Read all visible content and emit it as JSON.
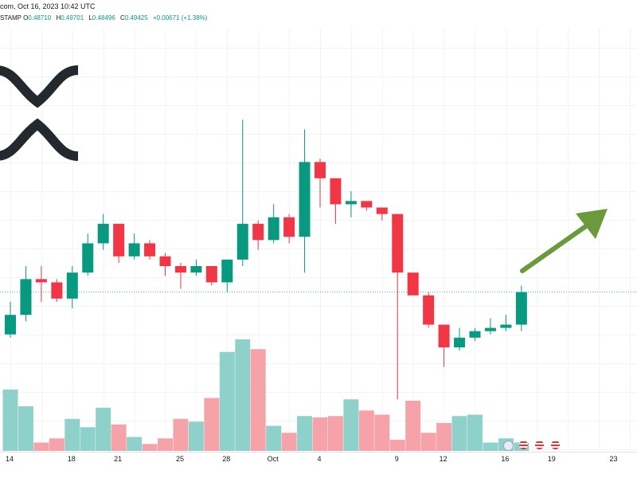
{
  "header": {
    "line1": "com, Oct 16, 2023 10:42 UTC",
    "line2_prefix": "STAMP",
    "ohlc": [
      {
        "key": "O",
        "value": "0.48710"
      },
      {
        "key": "H",
        "value": "0.49701"
      },
      {
        "key": "L",
        "value": "0.48496"
      },
      {
        "key": "C",
        "value": "0.49425"
      },
      {
        "key": "",
        "value": "+0.00671 (+1.38%)"
      }
    ]
  },
  "colors": {
    "up": "#089981",
    "down": "#F23645",
    "up_vol": "#8ED1CB",
    "down_vol": "#F5A3A8",
    "arrow": "#6A9A3A",
    "logo": "#23292F",
    "grid": "#F0F3FA",
    "last_price_line": "#089981"
  },
  "chart_data": {
    "type": "candlestick",
    "title": "",
    "xlabel": "",
    "ylabel": "",
    "x_tick_labels": [
      "14",
      "18",
      "21",
      "25",
      "28",
      "Oct",
      "4",
      "9",
      "12",
      "16",
      "19",
      "23"
    ],
    "ylim": [
      0.44,
      0.56
    ],
    "grid": true,
    "candles": [
      {
        "o": 0.467,
        "h": 0.477,
        "l": 0.466,
        "c": 0.473
      },
      {
        "o": 0.473,
        "h": 0.488,
        "l": 0.471,
        "c": 0.484
      },
      {
        "o": 0.484,
        "h": 0.488,
        "l": 0.477,
        "c": 0.483
      },
      {
        "o": 0.483,
        "h": 0.484,
        "l": 0.477,
        "c": 0.478
      },
      {
        "o": 0.478,
        "h": 0.488,
        "l": 0.475,
        "c": 0.486
      },
      {
        "o": 0.486,
        "h": 0.498,
        "l": 0.485,
        "c": 0.495
      },
      {
        "o": 0.495,
        "h": 0.504,
        "l": 0.493,
        "c": 0.501
      },
      {
        "o": 0.501,
        "h": 0.501,
        "l": 0.489,
        "c": 0.491
      },
      {
        "o": 0.491,
        "h": 0.498,
        "l": 0.49,
        "c": 0.495
      },
      {
        "o": 0.495,
        "h": 0.496,
        "l": 0.49,
        "c": 0.491
      },
      {
        "o": 0.491,
        "h": 0.492,
        "l": 0.485,
        "c": 0.488
      },
      {
        "o": 0.488,
        "h": 0.489,
        "l": 0.481,
        "c": 0.486
      },
      {
        "o": 0.486,
        "h": 0.49,
        "l": 0.485,
        "c": 0.488
      },
      {
        "o": 0.488,
        "h": 0.488,
        "l": 0.482,
        "c": 0.483
      },
      {
        "o": 0.483,
        "h": 0.49,
        "l": 0.48,
        "c": 0.49
      },
      {
        "o": 0.49,
        "h": 0.533,
        "l": 0.488,
        "c": 0.501
      },
      {
        "o": 0.501,
        "h": 0.502,
        "l": 0.493,
        "c": 0.496
      },
      {
        "o": 0.496,
        "h": 0.507,
        "l": 0.495,
        "c": 0.503
      },
      {
        "o": 0.503,
        "h": 0.504,
        "l": 0.495,
        "c": 0.497
      },
      {
        "o": 0.497,
        "h": 0.53,
        "l": 0.486,
        "c": 0.52
      },
      {
        "o": 0.52,
        "h": 0.521,
        "l": 0.506,
        "c": 0.515
      },
      {
        "o": 0.515,
        "h": 0.515,
        "l": 0.501,
        "c": 0.507
      },
      {
        "o": 0.507,
        "h": 0.511,
        "l": 0.503,
        "c": 0.508
      },
      {
        "o": 0.508,
        "h": 0.508,
        "l": 0.505,
        "c": 0.506
      },
      {
        "o": 0.506,
        "h": 0.506,
        "l": 0.502,
        "c": 0.504
      },
      {
        "o": 0.504,
        "h": 0.504,
        "l": 0.447,
        "c": 0.486
      },
      {
        "o": 0.486,
        "h": 0.486,
        "l": 0.479,
        "c": 0.479
      },
      {
        "o": 0.479,
        "h": 0.48,
        "l": 0.469,
        "c": 0.47
      },
      {
        "o": 0.47,
        "h": 0.47,
        "l": 0.457,
        "c": 0.463
      },
      {
        "o": 0.463,
        "h": 0.469,
        "l": 0.462,
        "c": 0.466
      },
      {
        "o": 0.466,
        "h": 0.469,
        "l": 0.465,
        "c": 0.468
      },
      {
        "o": 0.468,
        "h": 0.472,
        "l": 0.467,
        "c": 0.469
      },
      {
        "o": 0.469,
        "h": 0.473,
        "l": 0.468,
        "c": 0.47
      },
      {
        "o": 0.47,
        "h": 0.482,
        "l": 0.468,
        "c": 0.48
      }
    ],
    "volume": [
      44,
      32,
      6,
      9,
      23,
      17,
      31,
      19,
      10,
      5,
      9,
      23,
      21,
      38,
      71,
      80,
      73,
      18,
      13,
      25,
      24,
      25,
      37,
      29,
      26,
      8,
      36,
      13,
      20,
      25,
      26,
      6,
      9,
      6
    ]
  }
}
